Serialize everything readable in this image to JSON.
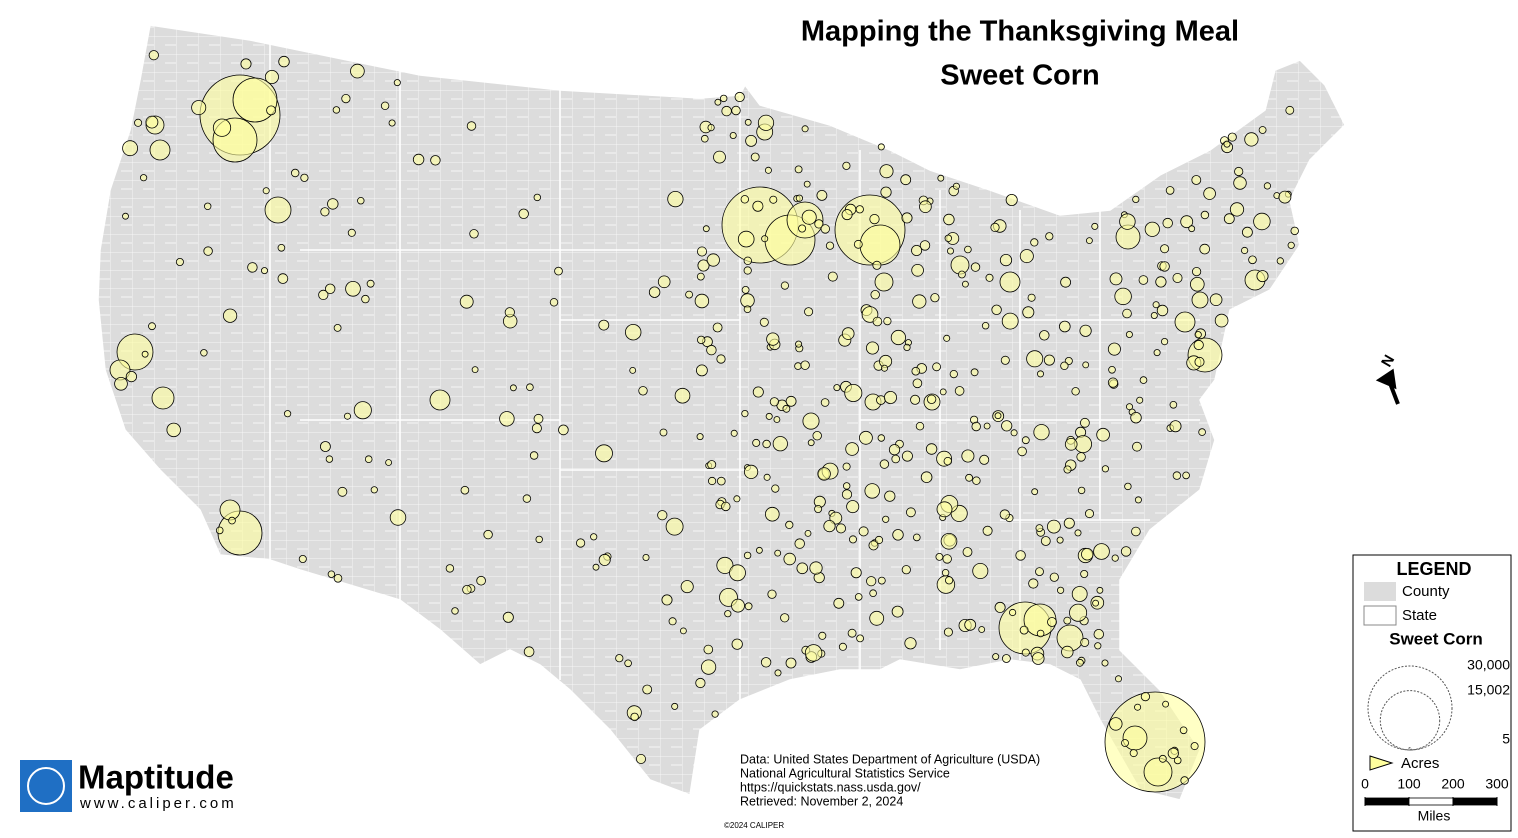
{
  "title": "Mapping the Thanksgiving Meal",
  "subtitle": "Sweet Corn",
  "north": "N",
  "legend": {
    "title": "LEGEND",
    "items": [
      "County",
      "State"
    ],
    "symbol_title": "Sweet Corn",
    "sizes": [
      {
        "value": 30000,
        "label": "30,000"
      },
      {
        "value": 15002,
        "label": "15,002"
      },
      5
    ],
    "unit": "Acres",
    "scale_ticks": [
      0,
      100,
      200,
      300
    ],
    "scale_unit": "Miles"
  },
  "source": [
    "Data: United States Department of Agriculture (USDA)",
    "National Agricultural Statistics Service",
    "https://quickstats.nass.usda.gov/",
    "Retrieved: November 2, 2024"
  ],
  "copyright": "©2024 CALIPER",
  "logo": {
    "name": "Maptitude",
    "url": "www.caliper.com"
  }
}
